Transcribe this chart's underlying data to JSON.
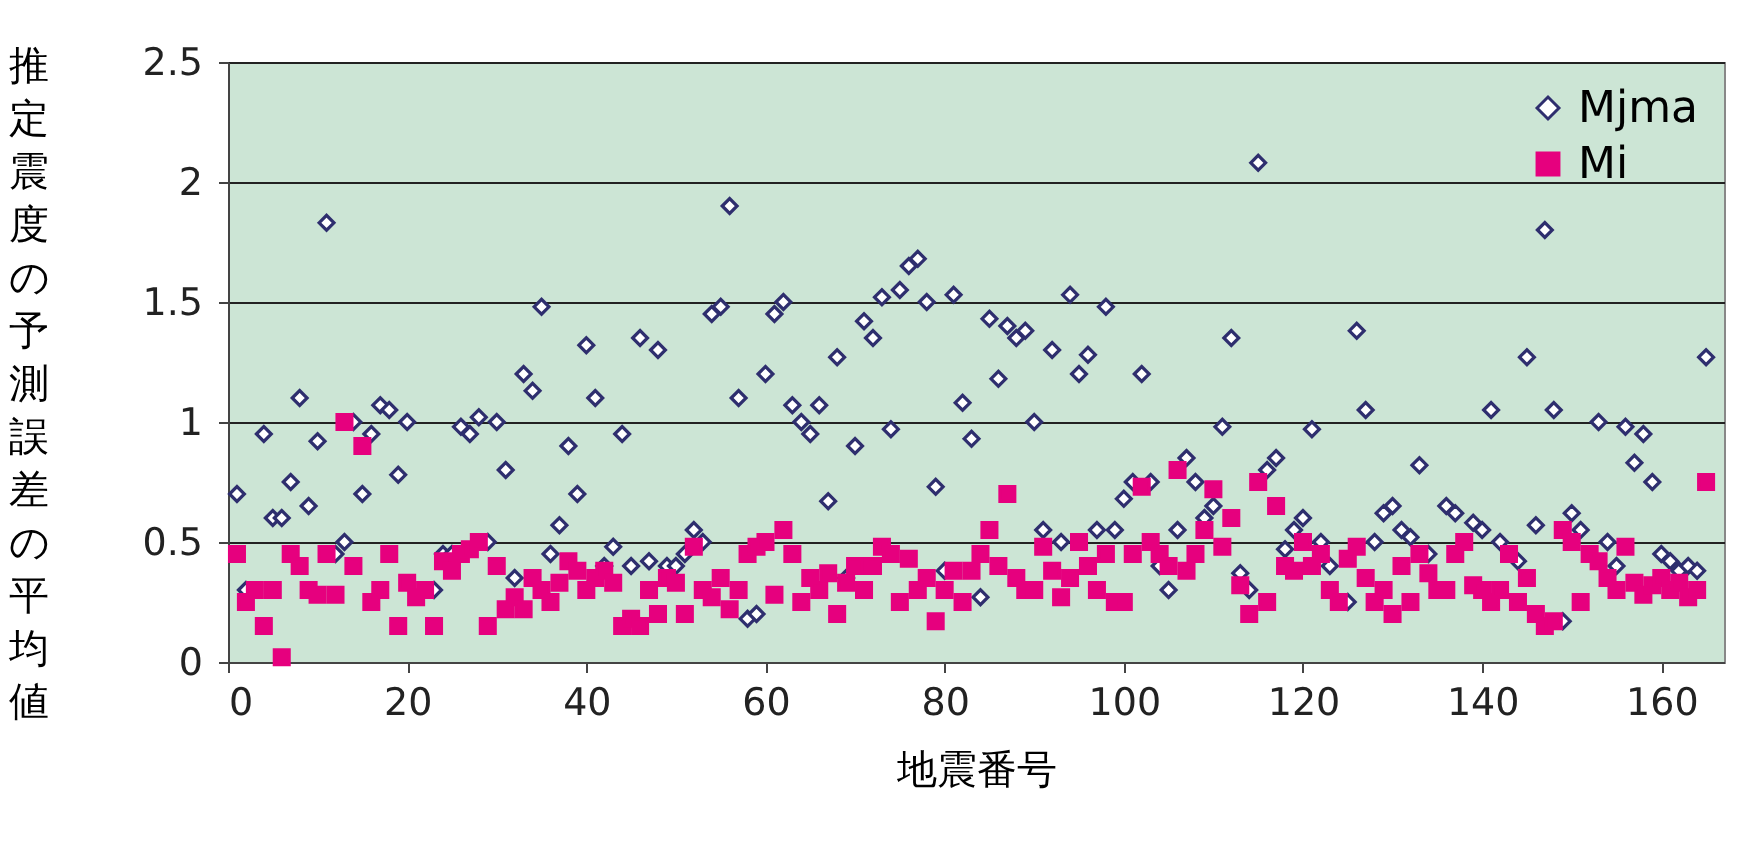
{
  "chart_data": {
    "type": "scatter",
    "xlabel": "地震番号",
    "ylabel": "推定震度の予測誤差の平均値",
    "x": [
      1,
      2,
      3,
      4,
      5,
      6,
      7,
      8,
      9,
      10,
      11,
      12,
      13,
      14,
      15,
      16,
      17,
      18,
      19,
      20,
      21,
      22,
      23,
      24,
      25,
      26,
      27,
      28,
      29,
      30,
      31,
      32,
      33,
      34,
      35,
      36,
      37,
      38,
      39,
      40,
      41,
      42,
      43,
      44,
      45,
      46,
      47,
      48,
      49,
      50,
      51,
      52,
      53,
      54,
      55,
      56,
      57,
      58,
      59,
      60,
      61,
      62,
      63,
      64,
      65,
      66,
      67,
      68,
      69,
      70,
      71,
      72,
      73,
      74,
      75,
      76,
      77,
      78,
      79,
      80,
      81,
      82,
      83,
      84,
      85,
      86,
      87,
      88,
      89,
      90,
      91,
      92,
      93,
      94,
      95,
      96,
      97,
      98,
      99,
      100,
      101,
      102,
      103,
      104,
      105,
      106,
      107,
      108,
      109,
      110,
      111,
      112,
      113,
      114,
      115,
      116,
      117,
      118,
      119,
      120,
      121,
      122,
      123,
      124,
      125,
      126,
      127,
      128,
      129,
      130,
      131,
      132,
      133,
      134,
      135,
      136,
      137,
      138,
      139,
      140,
      141,
      142,
      143,
      144,
      145,
      146,
      147,
      148,
      149,
      150,
      151,
      152,
      153,
      154,
      155,
      156,
      157,
      158,
      159,
      160,
      161,
      162,
      163,
      164,
      165
    ],
    "series": [
      {
        "name": "Mjma",
        "color": "#2e2e6e",
        "marker": "diamond",
        "values": [
          0.7,
          0.3,
          null,
          0.95,
          0.6,
          0.6,
          0.75,
          1.1,
          0.65,
          0.92,
          1.83,
          0.45,
          0.5,
          1.0,
          0.7,
          0.95,
          1.07,
          1.05,
          0.78,
          1.0,
          null,
          null,
          0.3,
          0.45,
          0.45,
          0.98,
          0.95,
          1.02,
          0.5,
          1.0,
          0.8,
          0.35,
          1.2,
          1.13,
          1.48,
          0.45,
          0.57,
          0.9,
          0.7,
          1.32,
          1.1,
          0.4,
          0.48,
          0.95,
          0.4,
          1.35,
          0.42,
          1.3,
          0.4,
          0.4,
          0.45,
          0.55,
          0.5,
          1.45,
          1.48,
          1.9,
          1.1,
          0.18,
          0.2,
          1.2,
          1.45,
          1.5,
          1.07,
          1.0,
          0.95,
          1.07,
          0.67,
          1.27,
          0.35,
          0.9,
          1.42,
          1.35,
          1.52,
          0.97,
          1.55,
          1.65,
          1.68,
          1.5,
          0.73,
          0.38,
          1.53,
          1.08,
          0.93,
          0.27,
          1.43,
          1.18,
          1.4,
          1.35,
          1.38,
          1.0,
          0.55,
          1.3,
          0.5,
          1.53,
          1.2,
          1.28,
          0.55,
          1.48,
          0.55,
          0.68,
          0.75,
          1.2,
          0.75,
          0.4,
          0.3,
          0.55,
          0.85,
          0.75,
          0.6,
          0.65,
          0.98,
          1.35,
          0.37,
          0.3,
          2.08,
          0.8,
          0.85,
          0.47,
          0.55,
          0.6,
          0.97,
          0.5,
          0.4,
          null,
          0.25,
          1.38,
          1.05,
          0.5,
          0.62,
          0.65,
          0.55,
          0.52,
          0.82,
          0.45,
          null,
          0.65,
          0.62,
          null,
          0.58,
          0.55,
          1.05,
          0.5,
          null,
          0.42,
          1.27,
          0.57,
          1.8,
          1.05,
          0.17,
          0.62,
          0.55,
          null,
          1.0,
          0.5,
          0.4,
          0.98,
          0.83,
          0.95,
          0.75,
          0.45,
          0.42,
          0.38,
          0.4,
          0.38,
          1.27
        ]
      },
      {
        "name": "Mi",
        "color": "#e6007e",
        "marker": "square",
        "values": [
          0.45,
          0.25,
          0.3,
          0.15,
          0.3,
          0.02,
          0.45,
          0.4,
          0.3,
          0.28,
          0.45,
          0.28,
          1.0,
          0.4,
          0.9,
          0.25,
          0.3,
          0.45,
          0.15,
          0.33,
          0.27,
          0.3,
          0.15,
          0.42,
          0.38,
          0.45,
          0.47,
          0.5,
          0.15,
          0.4,
          0.22,
          0.27,
          0.22,
          0.35,
          0.3,
          0.25,
          0.33,
          0.42,
          0.38,
          0.3,
          0.35,
          0.38,
          0.33,
          0.15,
          0.18,
          0.15,
          0.3,
          0.2,
          0.35,
          0.33,
          0.2,
          0.48,
          0.3,
          0.27,
          0.35,
          0.22,
          0.3,
          0.45,
          0.48,
          0.5,
          0.28,
          0.55,
          0.45,
          0.25,
          0.35,
          0.3,
          0.37,
          0.2,
          0.33,
          0.4,
          0.3,
          0.4,
          0.48,
          0.45,
          0.25,
          0.43,
          0.3,
          0.35,
          0.17,
          0.3,
          0.38,
          0.25,
          0.38,
          0.45,
          0.55,
          0.4,
          0.7,
          0.35,
          0.3,
          0.3,
          0.48,
          0.38,
          0.27,
          0.35,
          0.5,
          0.4,
          0.3,
          0.45,
          0.25,
          0.25,
          0.45,
          0.73,
          0.5,
          0.45,
          0.4,
          0.8,
          0.38,
          0.45,
          0.55,
          0.72,
          0.48,
          0.6,
          0.32,
          0.2,
          0.75,
          0.25,
          0.65,
          0.4,
          0.38,
          0.5,
          0.4,
          0.45,
          0.3,
          0.25,
          0.43,
          0.48,
          0.35,
          0.25,
          0.3,
          0.2,
          0.4,
          0.25,
          0.45,
          0.37,
          0.3,
          0.3,
          0.45,
          0.5,
          0.32,
          0.3,
          0.25,
          0.3,
          0.45,
          0.25,
          0.35,
          0.2,
          0.15,
          0.17,
          0.55,
          0.5,
          0.25,
          0.45,
          0.42,
          0.35,
          0.3,
          0.48,
          0.33,
          0.28,
          0.32,
          0.35,
          0.3,
          0.33,
          0.27,
          0.3,
          0.75
        ]
      }
    ],
    "xlim": [
      0,
      167
    ],
    "xticks": [
      0,
      20,
      40,
      60,
      80,
      100,
      120,
      140,
      160
    ],
    "ylim": [
      0,
      2.5
    ],
    "yticks": [
      0,
      0.5,
      1,
      1.5,
      2,
      2.5
    ],
    "grid": "y",
    "legend": "top right"
  }
}
